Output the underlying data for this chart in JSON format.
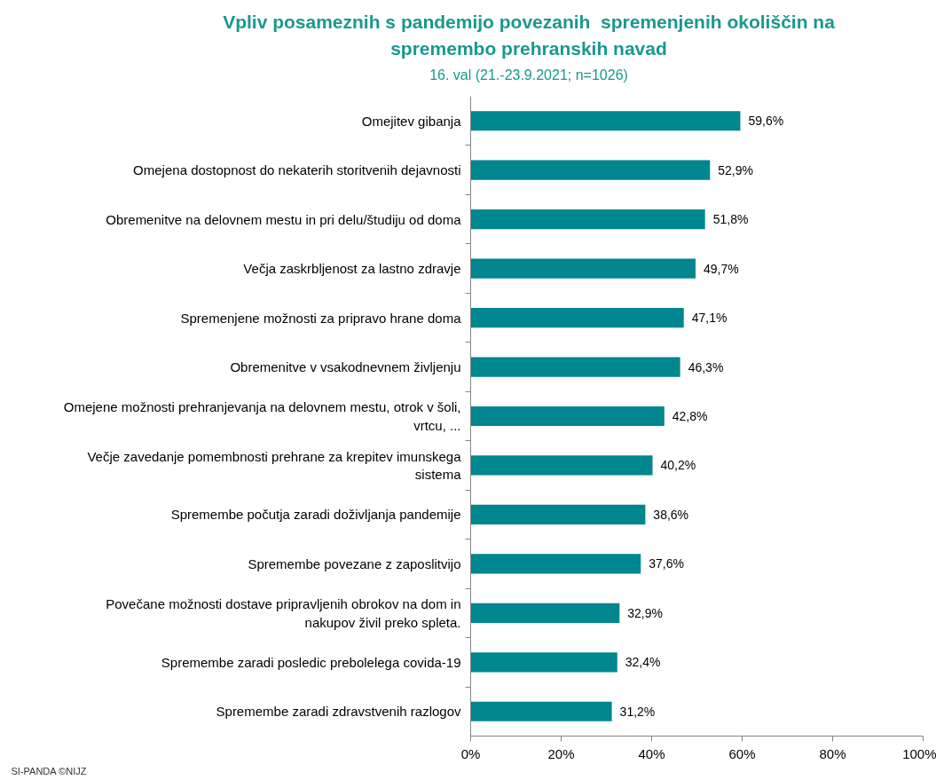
{
  "chart_data": {
    "type": "bar",
    "orientation": "horizontal",
    "title": "Vpliv posameznih s pandemijo povezanih  spremenjenih okoliščin na spremembo prehranskih navad",
    "subtitle": "16. val (21.-23.9.2021; n=1026)",
    "categories": [
      "Omejitev gibanja",
      "Omejena dostopnost do nekaterih storitvenih dejavnosti",
      "Obremenitve na delovnem mestu in pri delu/študiju od doma",
      "Večja zaskrbljenost za lastno zdravje",
      "Spremenjene možnosti za pripravo hrane doma",
      "Obremenitve v vsakodnevnem življenju",
      "Omejene možnosti prehranjevanja na delovnem mestu, otrok v šoli, vrtcu, ...",
      "Večje zavedanje pomembnosti prehrane za krepitev imunskega sistema",
      "Spremembe počutja zaradi doživljanja pandemije",
      "Spremembe povezane z zaposlitvijo",
      "Povečane možnosti dostave pripravljenih obrokov na dom in nakupov živil preko spleta.",
      "Spremembe zaradi posledic prebolelega covida-19",
      "Spremembe zaradi zdravstvenih razlogov"
    ],
    "values": [
      59.6,
      52.9,
      51.8,
      49.7,
      47.1,
      46.3,
      42.8,
      40.2,
      38.6,
      37.6,
      32.9,
      32.4,
      31.2
    ],
    "value_labels": [
      "59,6%",
      "52,9%",
      "51,8%",
      "49,7%",
      "47,1%",
      "46,3%",
      "42,8%",
      "40,2%",
      "38,6%",
      "37,6%",
      "32,9%",
      "32,4%",
      "31,2%"
    ],
    "color": "#00868f",
    "xlim": [
      0,
      100
    ],
    "xticks": [
      {
        "value": 0,
        "label": "0%"
      },
      {
        "value": 20,
        "label": "20%"
      },
      {
        "value": 40,
        "label": "40%"
      },
      {
        "value": 60,
        "label": "60%"
      },
      {
        "value": 80,
        "label": "80%"
      },
      {
        "value": 100,
        "label": "100%"
      }
    ],
    "annotations": [
      "SI-PANDA ©NIJZ"
    ]
  }
}
